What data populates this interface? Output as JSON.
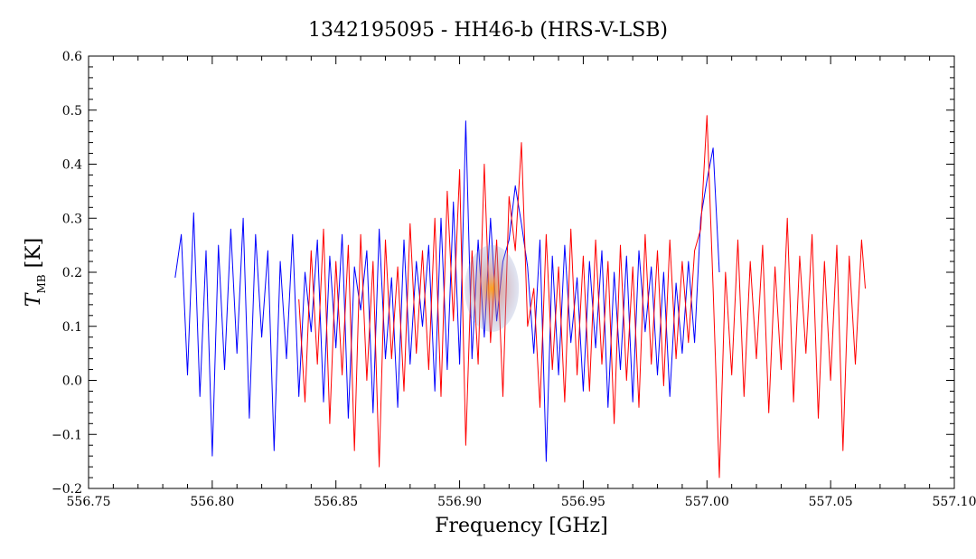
{
  "chart_data": {
    "type": "line",
    "title": "1342195095 - HH46-b (HRS-V-LSB)",
    "xlabel": "Frequency [GHz]",
    "ylabel_main": "T",
    "ylabel_sub": "MB",
    "ylabel_unit": " [K]",
    "xlim": [
      556.75,
      557.1
    ],
    "ylim": [
      -0.2,
      0.6
    ],
    "x_ticks": [
      556.75,
      556.8,
      556.85,
      556.9,
      556.95,
      557.0,
      557.05,
      557.1
    ],
    "x_tick_labels": [
      "556.75",
      "556.80",
      "556.85",
      "556.90",
      "556.95",
      "557.00",
      "557.05",
      "557.10"
    ],
    "y_ticks": [
      -0.2,
      -0.1,
      0.0,
      0.1,
      0.2,
      0.3,
      0.4,
      0.5,
      0.6
    ],
    "y_tick_labels": [
      "−0.2",
      "−0.1",
      "0.0",
      "0.1",
      "0.2",
      "0.3",
      "0.4",
      "0.5",
      "0.6"
    ],
    "grid": false,
    "series": [
      {
        "color": "#0000ff",
        "x": [
          556.785,
          556.7875,
          556.79,
          556.7925,
          556.795,
          556.7975,
          556.8,
          556.8025,
          556.805,
          556.8075,
          556.81,
          556.8125,
          556.815,
          556.8175,
          556.82,
          556.8225,
          556.825,
          556.8275,
          556.83,
          556.8325,
          556.835,
          556.8375,
          556.84,
          556.8425,
          556.845,
          556.8475,
          556.85,
          556.8525,
          556.855,
          556.8575,
          556.86,
          556.8625,
          556.865,
          556.8675,
          556.87,
          556.8725,
          556.875,
          556.8775,
          556.88,
          556.8825,
          556.885,
          556.8875,
          556.89,
          556.8925,
          556.895,
          556.8975,
          556.9,
          556.9025,
          556.905,
          556.9075,
          556.91,
          556.9125,
          556.915,
          556.9175,
          556.92,
          556.9225,
          556.925,
          556.9275,
          556.93,
          556.9325,
          556.935,
          556.9375,
          556.94,
          556.9425,
          556.945,
          556.9475,
          556.95,
          556.9525,
          556.955,
          556.9575,
          556.96,
          556.9625,
          556.965,
          556.9675,
          556.97,
          556.9725,
          556.975,
          556.9775,
          556.98,
          556.9825,
          556.985,
          556.9875,
          556.99,
          556.9925,
          556.995,
          556.9975,
          557.0,
          557.0025,
          557.005
        ],
        "y": [
          0.19,
          0.27,
          0.01,
          0.31,
          -0.03,
          0.24,
          -0.14,
          0.25,
          0.02,
          0.28,
          0.05,
          0.3,
          -0.07,
          0.27,
          0.08,
          0.24,
          -0.13,
          0.22,
          0.04,
          0.27,
          -0.03,
          0.2,
          0.09,
          0.26,
          -0.04,
          0.23,
          0.06,
          0.27,
          -0.07,
          0.21,
          0.13,
          0.24,
          -0.06,
          0.28,
          0.04,
          0.19,
          -0.05,
          0.26,
          0.03,
          0.22,
          0.1,
          0.25,
          -0.02,
          0.3,
          0.02,
          0.33,
          0.03,
          0.48,
          0.04,
          0.26,
          0.08,
          0.3,
          0.11,
          0.22,
          0.26,
          0.36,
          0.29,
          0.21,
          0.05,
          0.26,
          -0.15,
          0.23,
          0.01,
          0.25,
          0.07,
          0.19,
          -0.02,
          0.22,
          0.06,
          0.24,
          -0.05,
          0.2,
          0.02,
          0.23,
          -0.04,
          0.24,
          0.09,
          0.21,
          0.01,
          0.2,
          -0.03,
          0.18,
          0.05,
          0.22,
          0.07,
          0.3,
          0.37,
          0.43,
          0.2
        ]
      },
      {
        "color": "#ff0000",
        "x": [
          556.835,
          556.8375,
          556.84,
          556.8425,
          556.845,
          556.8475,
          556.85,
          556.8525,
          556.855,
          556.8575,
          556.86,
          556.8625,
          556.865,
          556.8675,
          556.87,
          556.8725,
          556.875,
          556.8775,
          556.88,
          556.8825,
          556.885,
          556.8875,
          556.89,
          556.8925,
          556.895,
          556.8975,
          556.9,
          556.9025,
          556.905,
          556.9075,
          556.91,
          556.9125,
          556.915,
          556.9175,
          556.92,
          556.9225,
          556.925,
          556.9275,
          556.93,
          556.9325,
          556.935,
          556.9375,
          556.94,
          556.9425,
          556.945,
          556.9475,
          556.95,
          556.9525,
          556.955,
          556.9575,
          556.96,
          556.9625,
          556.965,
          556.9675,
          556.97,
          556.9725,
          556.975,
          556.9775,
          556.98,
          556.9825,
          556.985,
          556.9875,
          556.99,
          556.9925,
          556.995,
          556.9975,
          557.0,
          557.0025,
          557.005,
          557.0075,
          557.01,
          557.0125,
          557.015,
          557.0175,
          557.02,
          557.0225,
          557.025,
          557.0275,
          557.03,
          557.0325,
          557.035,
          557.0375,
          557.04,
          557.0425,
          557.045,
          557.0475,
          557.05,
          557.0525,
          557.055,
          557.0575,
          557.06,
          557.0625,
          557.064
        ],
        "y": [
          0.15,
          -0.04,
          0.24,
          0.03,
          0.28,
          -0.08,
          0.22,
          0.01,
          0.25,
          -0.13,
          0.27,
          0.0,
          0.22,
          -0.16,
          0.26,
          0.04,
          0.21,
          -0.02,
          0.29,
          0.05,
          0.24,
          0.02,
          0.3,
          -0.03,
          0.35,
          0.11,
          0.39,
          -0.12,
          0.24,
          0.03,
          0.4,
          0.07,
          0.26,
          -0.03,
          0.34,
          0.24,
          0.44,
          0.1,
          0.17,
          -0.05,
          0.27,
          0.02,
          0.21,
          -0.04,
          0.28,
          0.01,
          0.23,
          -0.02,
          0.26,
          0.03,
          0.22,
          -0.08,
          0.25,
          0.0,
          0.21,
          -0.05,
          0.27,
          0.03,
          0.24,
          -0.01,
          0.26,
          0.04,
          0.22,
          0.07,
          0.24,
          0.28,
          0.49,
          0.17,
          -0.18,
          0.2,
          0.01,
          0.26,
          -0.03,
          0.22,
          0.04,
          0.25,
          -0.06,
          0.21,
          0.02,
          0.3,
          -0.04,
          0.23,
          0.05,
          0.27,
          -0.07,
          0.22,
          0.0,
          0.25,
          -0.13,
          0.23,
          0.03,
          0.26,
          0.17
        ]
      }
    ]
  }
}
